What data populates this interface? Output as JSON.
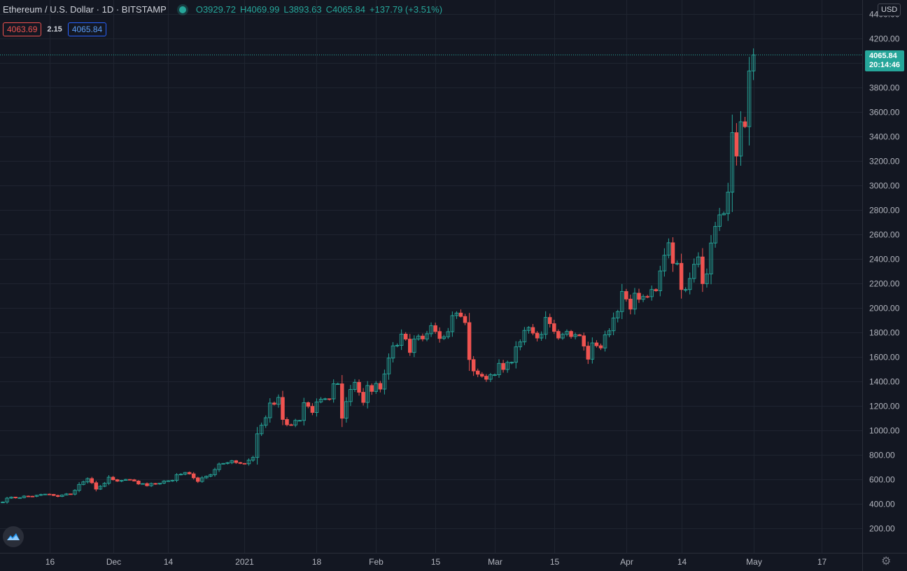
{
  "header": {
    "symbol_title": "Ethereum / U.S. Dollar · 1D · BITSTAMP",
    "open_label": "O",
    "open": "3929.72",
    "high_label": "H",
    "high": "4069.99",
    "low_label": "L",
    "low": "3893.63",
    "close_label": "C",
    "close": "4065.84",
    "change": "+137.79 (+3.51%)"
  },
  "indicator": {
    "bid": "4063.69",
    "spread": "2.15",
    "ask": "4065.84"
  },
  "currency": "USD",
  "last_price": {
    "price": "4065.84",
    "countdown": "20:14:46"
  },
  "colors": {
    "up": "#26a69a",
    "down": "#ef5350",
    "background": "#131722",
    "grid": "#1f2430",
    "axis_text": "#b2b5be"
  },
  "icons": {
    "logo": "tradingview-logo-icon",
    "settings": "gear-icon"
  },
  "chart_data": {
    "type": "candlestick",
    "title": "Ethereum / U.S. Dollar",
    "timeframe": "1D",
    "exchange": "BITSTAMP",
    "y_ticks": [
      "200.00",
      "400.00",
      "600.00",
      "800.00",
      "1000.00",
      "1200.00",
      "1400.00",
      "1600.00",
      "1800.00",
      "2000.00",
      "2200.00",
      "2400.00",
      "2600.00",
      "2800.00",
      "3000.00",
      "3200.00",
      "3400.00",
      "3600.00",
      "3800.00",
      "4000.00",
      "4200.00",
      "4400.00"
    ],
    "y_tick_values": [
      200,
      400,
      600,
      800,
      1000,
      1200,
      1400,
      1600,
      1800,
      2000,
      2200,
      2400,
      2600,
      2800,
      3000,
      3200,
      3400,
      3600,
      3800,
      4000,
      4200,
      4400
    ],
    "x_ticks": [
      {
        "label": "16",
        "date": "2020-11-16"
      },
      {
        "label": "Dec",
        "date": "2020-12-01"
      },
      {
        "label": "14",
        "date": "2020-12-14"
      },
      {
        "label": "2021",
        "date": "2021-01-01"
      },
      {
        "label": "18",
        "date": "2021-01-18"
      },
      {
        "label": "Feb",
        "date": "2021-02-01"
      },
      {
        "label": "15",
        "date": "2021-02-15"
      },
      {
        "label": "Mar",
        "date": "2021-03-01"
      },
      {
        "label": "15",
        "date": "2021-03-15"
      },
      {
        "label": "Apr",
        "date": "2021-04-01"
      },
      {
        "label": "14",
        "date": "2021-04-14"
      },
      {
        "label": "May",
        "date": "2021-05-01"
      },
      {
        "label": "17",
        "date": "2021-05-17"
      }
    ],
    "first_date": "2020-11-05",
    "closes": [
      415,
      446,
      455,
      449,
      450,
      463,
      462,
      461,
      470,
      476,
      479,
      477,
      468,
      460,
      472,
      481,
      479,
      510,
      558,
      579,
      606,
      572,
      520,
      543,
      568,
      617,
      597,
      585,
      591,
      599,
      596,
      586,
      562,
      565,
      548,
      566,
      561,
      569,
      586,
      588,
      592,
      638,
      642,
      656,
      645,
      612,
      583,
      612,
      626,
      638,
      680,
      725,
      730,
      736,
      752,
      737,
      730,
      727,
      757,
      779,
      972,
      1042,
      1103,
      1223,
      1213,
      1269,
      1089,
      1046,
      1044,
      1081,
      1081,
      1226,
      1196,
      1146,
      1232,
      1254,
      1258,
      1257,
      1380,
      1380,
      1099,
      1235,
      1334,
      1392,
      1311,
      1228,
      1366,
      1318,
      1383,
      1337,
      1461,
      1590,
      1690,
      1694,
      1786,
      1745,
      1636,
      1746,
      1770,
      1746,
      1789,
      1855,
      1807,
      1750,
      1764,
      1806,
      1937,
      1958,
      1930,
      1880,
      1578,
      1485,
      1458,
      1442,
      1417,
      1454,
      1454,
      1547,
      1497,
      1555,
      1556,
      1682,
      1722,
      1816,
      1840,
      1794,
      1754,
      1784,
      1922,
      1871,
      1808,
      1754,
      1784,
      1808,
      1766,
      1781,
      1772,
      1688,
      1581,
      1714,
      1691,
      1673,
      1780,
      1813,
      1918,
      1970,
      2134,
      2072,
      1990,
      2120,
      2070,
      2093,
      2092,
      2150,
      2140,
      2302,
      2430,
      2532,
      2364,
      2364,
      2150,
      2150,
      2240,
      2356,
      2416,
      2198,
      2277,
      2530,
      2665,
      2760,
      2770,
      2945,
      3431,
      3240,
      3520,
      3480,
      3935,
      4066
    ]
  }
}
